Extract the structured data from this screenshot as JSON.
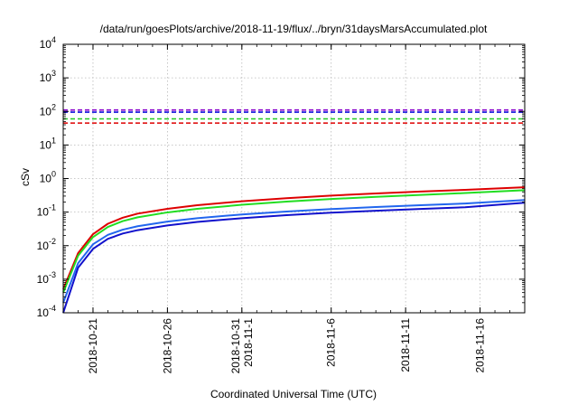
{
  "chart_data": {
    "type": "line",
    "title": "/data/run/goesPlots/archive/2018-11-19/flux/../bryn/31daysMarsAccumulated.plot",
    "xlabel": "Coordinated Universal Time (UTC)",
    "ylabel": "cSv",
    "yscale": "log",
    "ylim": [
      0.0001,
      10000
    ],
    "xlim": [
      "2018-10-19",
      "2018-11-19"
    ],
    "grid": true,
    "y_ticks": [
      {
        "base": "10",
        "exp": "-4"
      },
      {
        "base": "10",
        "exp": "-3"
      },
      {
        "base": "10",
        "exp": "-2"
      },
      {
        "base": "10",
        "exp": "-1"
      },
      {
        "base": "10",
        "exp": "0"
      },
      {
        "base": "10",
        "exp": "1"
      },
      {
        "base": "10",
        "exp": "2"
      },
      {
        "base": "10",
        "exp": "3"
      },
      {
        "base": "10",
        "exp": "4"
      }
    ],
    "x_ticks": [
      {
        "date": "2018-10-21",
        "lines": [
          "2018-10-21"
        ]
      },
      {
        "date": "2018-10-26",
        "lines": [
          "2018-10-26"
        ]
      },
      {
        "date": "2018-10-31",
        "lines": [
          "2018-10-31",
          "2018-11-1"
        ]
      },
      {
        "date": "2018-11-06",
        "lines": [
          "2018-11-6"
        ]
      },
      {
        "date": "2018-11-11",
        "lines": [
          "2018-11-11"
        ]
      },
      {
        "date": "2018-11-16",
        "lines": [
          "2018-11-16"
        ]
      }
    ],
    "series": [
      {
        "color": "#dd0000",
        "style": "dashed",
        "x": [
          "2018-10-19",
          "2018-11-19"
        ],
        "values": [
          45,
          45
        ]
      },
      {
        "color": "#22cc22",
        "style": "dashed",
        "x": [
          "2018-10-19",
          "2018-11-19"
        ],
        "values": [
          60,
          60
        ]
      },
      {
        "color": "#1111dd",
        "style": "dashed",
        "x": [
          "2018-10-19",
          "2018-11-19"
        ],
        "values": [
          95,
          95
        ]
      },
      {
        "color": "#8800cc",
        "style": "dashed",
        "x": [
          "2018-10-19",
          "2018-11-19"
        ],
        "values": [
          110,
          110
        ]
      },
      {
        "color": "#dd0000",
        "style": "solid",
        "x": [
          "2018-10-19",
          "2018-10-20",
          "2018-10-21",
          "2018-10-22",
          "2018-10-23",
          "2018-10-24",
          "2018-10-26",
          "2018-10-28",
          "2018-10-31",
          "2018-11-03",
          "2018-11-06",
          "2018-11-09",
          "2018-11-12",
          "2018-11-15",
          "2018-11-19"
        ],
        "values": [
          0.0005,
          0.006,
          0.022,
          0.045,
          0.068,
          0.09,
          0.125,
          0.16,
          0.21,
          0.26,
          0.31,
          0.36,
          0.41,
          0.46,
          0.55
        ]
      },
      {
        "color": "#22dd22",
        "style": "solid",
        "x": [
          "2018-10-19",
          "2018-10-20",
          "2018-10-21",
          "2018-10-22",
          "2018-10-23",
          "2018-10-24",
          "2018-10-26",
          "2018-10-28",
          "2018-10-31",
          "2018-11-03",
          "2018-11-06",
          "2018-11-09",
          "2018-11-12",
          "2018-11-15",
          "2018-11-19"
        ],
        "values": [
          0.0004,
          0.005,
          0.018,
          0.036,
          0.054,
          0.07,
          0.098,
          0.125,
          0.165,
          0.205,
          0.245,
          0.285,
          0.325,
          0.37,
          0.45
        ]
      },
      {
        "color": "#2266ee",
        "style": "solid",
        "x": [
          "2018-10-19",
          "2018-10-20",
          "2018-10-21",
          "2018-10-22",
          "2018-10-23",
          "2018-10-24",
          "2018-10-26",
          "2018-10-28",
          "2018-10-31",
          "2018-11-03",
          "2018-11-06",
          "2018-11-09",
          "2018-11-12",
          "2018-11-15",
          "2018-11-19"
        ],
        "values": [
          0.0002,
          0.003,
          0.011,
          0.021,
          0.03,
          0.038,
          0.052,
          0.066,
          0.085,
          0.104,
          0.123,
          0.142,
          0.16,
          0.18,
          0.23
        ]
      },
      {
        "color": "#1111cc",
        "style": "solid",
        "x": [
          "2018-10-19",
          "2018-10-20",
          "2018-10-21",
          "2018-10-22",
          "2018-10-23",
          "2018-10-24",
          "2018-10-26",
          "2018-10-28",
          "2018-10-31",
          "2018-11-03",
          "2018-11-06",
          "2018-11-09",
          "2018-11-12",
          "2018-11-15",
          "2018-11-19"
        ],
        "values": [
          0.0001,
          0.0022,
          0.008,
          0.016,
          0.023,
          0.029,
          0.04,
          0.051,
          0.066,
          0.081,
          0.096,
          0.11,
          0.124,
          0.14,
          0.19
        ]
      }
    ]
  }
}
